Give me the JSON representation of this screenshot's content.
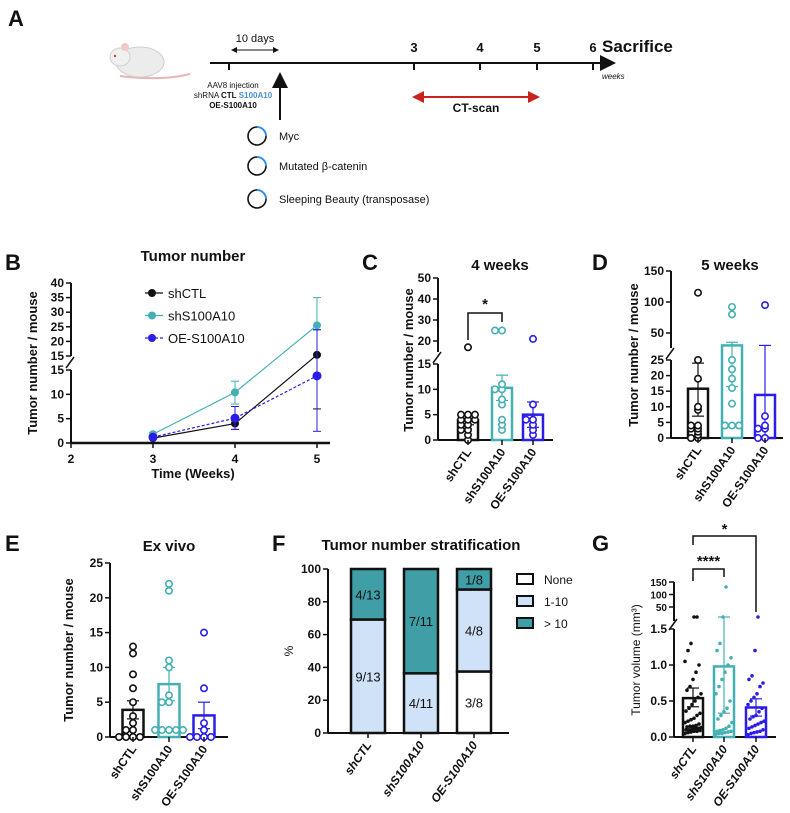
{
  "panel_labels": {
    "a": "A",
    "b": "B",
    "c": "C",
    "d": "D",
    "e": "E",
    "f": "F",
    "g": "G"
  },
  "panel_a": {
    "ten_days": "10 days",
    "week_ticks": [
      "3",
      "4",
      "5",
      "6"
    ],
    "sacrifice": "Sacrifice",
    "weeks_unit": "weeks",
    "injection_line1": "AAV8 injection",
    "injection_shrna": "shRNA",
    "injection_ctl": "CTL",
    "injection_s100": "S100A10",
    "injection_oe": "OE-S100A10",
    "ct_scan": "CT-scan",
    "plasmids": [
      "Myc",
      "Mutated β-catenin",
      "Sleeping Beauty (transposase)"
    ],
    "colors": {
      "ct": "#c8231e",
      "s100": "#4a8fd8",
      "oe": "#2b4a8c",
      "plasmid": "#2a8ff0"
    }
  },
  "chart_data": [
    {
      "panel": "B",
      "type": "line",
      "title": "Tumor number",
      "xlabel": "Time (Weeks)",
      "ylabel": "Tumor number / mouse",
      "x_ticks": [
        "2",
        "3",
        "4",
        "5"
      ],
      "y_ticks_lower": [
        "0",
        "5",
        "10",
        "15"
      ],
      "y_ticks_upper": [
        "15",
        "20",
        "25",
        "30",
        "35",
        "40"
      ],
      "ylim_lower": [
        0,
        15
      ],
      "ylim_upper": [
        15,
        40
      ],
      "xlim": [
        2,
        5
      ],
      "legend_position": "top-center",
      "series": [
        {
          "name": "shCTL",
          "color": "#111111",
          "style": "solid",
          "x": [
            3,
            4,
            5
          ],
          "y": [
            1.0,
            4.0,
            15.4
          ],
          "err_low": [
            0.8,
            2.8,
            7.0
          ],
          "err_high": [
            1.2,
            4.6,
            24.0
          ]
        },
        {
          "name": "shS100A10",
          "color": "#45b0b3",
          "style": "solid",
          "x": [
            3,
            4,
            5
          ],
          "y": [
            1.8,
            10.4,
            25.5
          ],
          "err_low": [
            1.4,
            8.0,
            24.0
          ],
          "err_high": [
            2.2,
            12.7,
            35.0
          ]
        },
        {
          "name": "OE-S100A10",
          "color": "#2b1de8",
          "style": "dotted",
          "x": [
            3,
            4,
            5
          ],
          "y": [
            1.2,
            5.1,
            13.8
          ],
          "err_low": [
            0.9,
            2.8,
            2.4
          ],
          "err_high": [
            1.5,
            7.5,
            24.0
          ]
        }
      ]
    },
    {
      "panel": "C",
      "type": "bar",
      "title": "4 weeks",
      "ylabel": "Tumor number / mouse",
      "categories": [
        "shCTL",
        "shS100A10",
        "OE-S100A10"
      ],
      "colors": [
        "#111111",
        "#45b0b3",
        "#2b1de8"
      ],
      "y_ticks_lower": [
        "0",
        "5",
        "10",
        "15"
      ],
      "y_ticks_upper": [
        "20",
        "30",
        "40",
        "50"
      ],
      "ylim_lower": [
        0,
        15
      ],
      "ylim_upper": [
        17,
        50
      ],
      "means": [
        3.9,
        10.3,
        5.0
      ],
      "err_low": [
        3.0,
        7.8,
        2.5
      ],
      "err_high": [
        5.0,
        12.8,
        7.5
      ],
      "points": [
        [
          0,
          1,
          2,
          2,
          3,
          3,
          4,
          4,
          4,
          5,
          5,
          5,
          17
        ],
        [
          2,
          3,
          4,
          7,
          8,
          10,
          10,
          11,
          25,
          25
        ],
        [
          1,
          2,
          3,
          4,
          4,
          7,
          21
        ]
      ],
      "significance": [
        {
          "from": 0,
          "to": 1,
          "label": "*"
        }
      ]
    },
    {
      "panel": "D",
      "type": "bar",
      "title": "5 weeks",
      "ylabel": "Tumor number / mouse",
      "categories": [
        "shCTL",
        "shS100A10",
        "OE-S100A10"
      ],
      "colors": [
        "#111111",
        "#45b0b3",
        "#2b1de8"
      ],
      "y_ticks_lower": [
        "0",
        "5",
        "10",
        "15",
        "20",
        "25"
      ],
      "y_ticks_upper": [
        "50",
        "100",
        "150"
      ],
      "ylim_lower": [
        0,
        25
      ],
      "ylim_upper": [
        28,
        150
      ],
      "means": [
        15.8,
        30,
        13.8
      ],
      "err_low": [
        7.0,
        16.5,
        0
      ],
      "err_high": [
        24,
        35,
        30
      ],
      "points": [
        [
          0,
          0,
          1,
          2,
          3,
          3,
          4,
          4,
          9,
          10,
          19,
          25,
          115
        ],
        [
          4,
          4,
          4,
          11,
          16,
          19,
          22,
          25,
          80,
          92
        ],
        [
          0,
          0,
          3,
          3,
          4,
          7,
          95
        ]
      ],
      "significance": []
    },
    {
      "panel": "E",
      "type": "bar",
      "title": "Ex vivo",
      "ylabel": "Tumor number / mouse",
      "categories": [
        "shCTL",
        "shS100A10",
        "OE-S100A10"
      ],
      "colors": [
        "#111111",
        "#45b0b3",
        "#2b1de8"
      ],
      "y_ticks_lower": [
        "0",
        "5",
        "10",
        "15",
        "20",
        "25"
      ],
      "ylim_lower": [
        0,
        25
      ],
      "means": [
        3.9,
        7.6,
        3.1
      ],
      "err_low": [
        2.6,
        5.2,
        1.2
      ],
      "err_high": [
        5.2,
        10.0,
        5.0
      ],
      "points": [
        [
          0,
          0,
          0,
          0,
          1,
          1,
          2,
          3,
          5,
          7,
          9,
          12,
          13
        ],
        [
          1,
          1,
          1,
          1,
          1,
          5,
          5,
          6,
          10,
          11,
          21,
          22
        ],
        [
          0,
          0,
          0,
          0,
          1,
          2,
          7,
          15
        ]
      ],
      "significance": []
    },
    {
      "panel": "F",
      "type": "stacked-bar",
      "title": "Tumor number stratification",
      "ylabel": "%",
      "categories": [
        "shCTL",
        "shS100A10",
        "OE-S100A10"
      ],
      "y_ticks": [
        "0",
        "20",
        "40",
        "60",
        "80",
        "100"
      ],
      "ylim": [
        0,
        100
      ],
      "legend_position": "right",
      "series": [
        {
          "name": "None",
          "color": "#ffffff",
          "values": [
            0,
            0,
            37.5
          ],
          "labels": [
            "",
            "",
            "3/8"
          ]
        },
        {
          "name": "1-10",
          "color": "#cfe2f7",
          "values": [
            69.2,
            36.4,
            50.0
          ],
          "labels": [
            "9/13",
            "4/11",
            "4/8"
          ]
        },
        {
          "name": "> 10",
          "color": "#3f9ea6",
          "values": [
            30.8,
            63.6,
            12.5
          ],
          "labels": [
            "4/13",
            "7/11",
            "1/8"
          ]
        }
      ]
    },
    {
      "panel": "G",
      "type": "bar",
      "title": "",
      "ylabel": "Tumor volume (mm³)",
      "categories": [
        "shCTL",
        "shS100A10",
        "OE-S100A10"
      ],
      "colors": [
        "#111111",
        "#45b0b3",
        "#2b1de8"
      ],
      "y_ticks_lower": [
        "0.0",
        "0.5",
        "1.0",
        "1.5"
      ],
      "y_ticks_upper": [
        "50",
        "100",
        "150"
      ],
      "ylim_lower": [
        0,
        1.5
      ],
      "ylim_upper": [
        10,
        150
      ],
      "means": [
        0.54,
        0.98,
        0.41
      ],
      "err_low": [
        0.42,
        0.33,
        0.29
      ],
      "err_high": [
        0.68,
        10,
        0.53
      ],
      "points": [
        [
          0.05,
          0.06,
          0.07,
          0.08,
          0.08,
          0.09,
          0.1,
          0.1,
          0.11,
          0.12,
          0.12,
          0.13,
          0.14,
          0.15,
          0.15,
          0.16,
          0.18,
          0.2,
          0.22,
          0.24,
          0.26,
          0.3,
          0.33,
          0.36,
          0.4,
          0.45,
          0.5,
          0.55,
          0.6,
          0.65,
          0.7,
          0.8,
          0.9,
          1.0,
          1.05,
          1.2,
          1.3,
          10,
          10
        ],
        [
          0.04,
          0.05,
          0.05,
          0.06,
          0.07,
          0.08,
          0.08,
          0.09,
          0.1,
          0.12,
          0.15,
          0.2,
          0.25,
          0.3,
          0.35,
          0.4,
          0.5,
          0.6,
          0.7,
          0.8,
          0.9,
          1.0,
          1.1,
          1.2,
          1.3,
          10,
          130
        ],
        [
          0.03,
          0.05,
          0.06,
          0.07,
          0.08,
          0.1,
          0.12,
          0.14,
          0.16,
          0.18,
          0.2,
          0.22,
          0.25,
          0.28,
          0.3,
          0.35,
          0.4,
          0.45,
          0.5,
          0.55,
          0.6,
          0.7,
          0.75,
          0.8,
          0.85,
          1.2,
          10
        ]
      ],
      "significance": [
        {
          "from": 0,
          "to": 1,
          "label": "****"
        },
        {
          "from": 0,
          "to": 2,
          "label": "*"
        }
      ]
    }
  ]
}
